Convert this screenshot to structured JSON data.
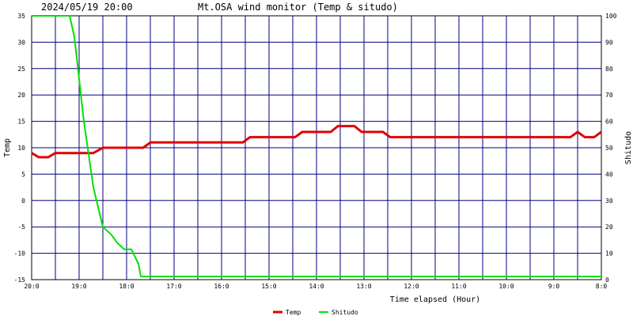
{
  "header": {
    "timestamp": "2024/05/19 20:00",
    "title": "Mt.OSA wind monitor (Temp & situdo)"
  },
  "chart_data": {
    "type": "line",
    "title": "Mt.OSA wind monitor (Temp & situdo)",
    "xlabel": "Time elapsed (Hour)",
    "ylabel_left": "Temp",
    "ylabel_right": "Shitudo",
    "x_unit": "hours elapsed",
    "xlim": [
      0,
      12
    ],
    "x_tick_labels": [
      "20:0",
      "19:0",
      "18:0",
      "17:0",
      "16:0",
      "15:0",
      "14:0",
      "13:0",
      "12:0",
      "11:0",
      "10:0",
      "9:0",
      "8:0"
    ],
    "ylim_left": [
      -15,
      35
    ],
    "y_ticks_left": [
      "35",
      "30",
      "25",
      "20",
      "15",
      "10",
      "5",
      "0",
      "-5",
      "-10",
      "-15"
    ],
    "ylim_right": [
      0,
      100
    ],
    "y_ticks_right": [
      "100",
      "90",
      "80",
      "70",
      "60",
      "50",
      "40",
      "30",
      "20",
      "10",
      "0"
    ],
    "grid": true,
    "legend_position": "bottom-center",
    "series": [
      {
        "name": "Temp",
        "axis": "left",
        "color": "#e00000",
        "points": [
          [
            0,
            9
          ],
          [
            0.15,
            8.2
          ],
          [
            0.35,
            8.2
          ],
          [
            0.5,
            9
          ],
          [
            1.3,
            9
          ],
          [
            1.5,
            10
          ],
          [
            2.35,
            10
          ],
          [
            2.5,
            11
          ],
          [
            4.45,
            11
          ],
          [
            4.6,
            12
          ],
          [
            5.55,
            12
          ],
          [
            5.7,
            13
          ],
          [
            6.3,
            13
          ],
          [
            6.45,
            14.1
          ],
          [
            6.8,
            14.1
          ],
          [
            6.95,
            13
          ],
          [
            7.4,
            13
          ],
          [
            7.55,
            12
          ],
          [
            11.35,
            12
          ],
          [
            11.5,
            13
          ],
          [
            11.65,
            12
          ],
          [
            11.85,
            12
          ],
          [
            12,
            13
          ]
        ]
      },
      {
        "name": "Shitudo",
        "axis": "right",
        "color": "#00e000",
        "points": [
          [
            0,
            100
          ],
          [
            0.8,
            100
          ],
          [
            0.9,
            92
          ],
          [
            1.1,
            60
          ],
          [
            1.3,
            35
          ],
          [
            1.5,
            20
          ],
          [
            1.68,
            17
          ],
          [
            1.8,
            14
          ],
          [
            1.95,
            11.5
          ],
          [
            2.05,
            11.5
          ],
          [
            2.1,
            11.5
          ],
          [
            2.25,
            6
          ],
          [
            2.3,
            1.2
          ],
          [
            12,
            1.2
          ]
        ]
      }
    ]
  }
}
